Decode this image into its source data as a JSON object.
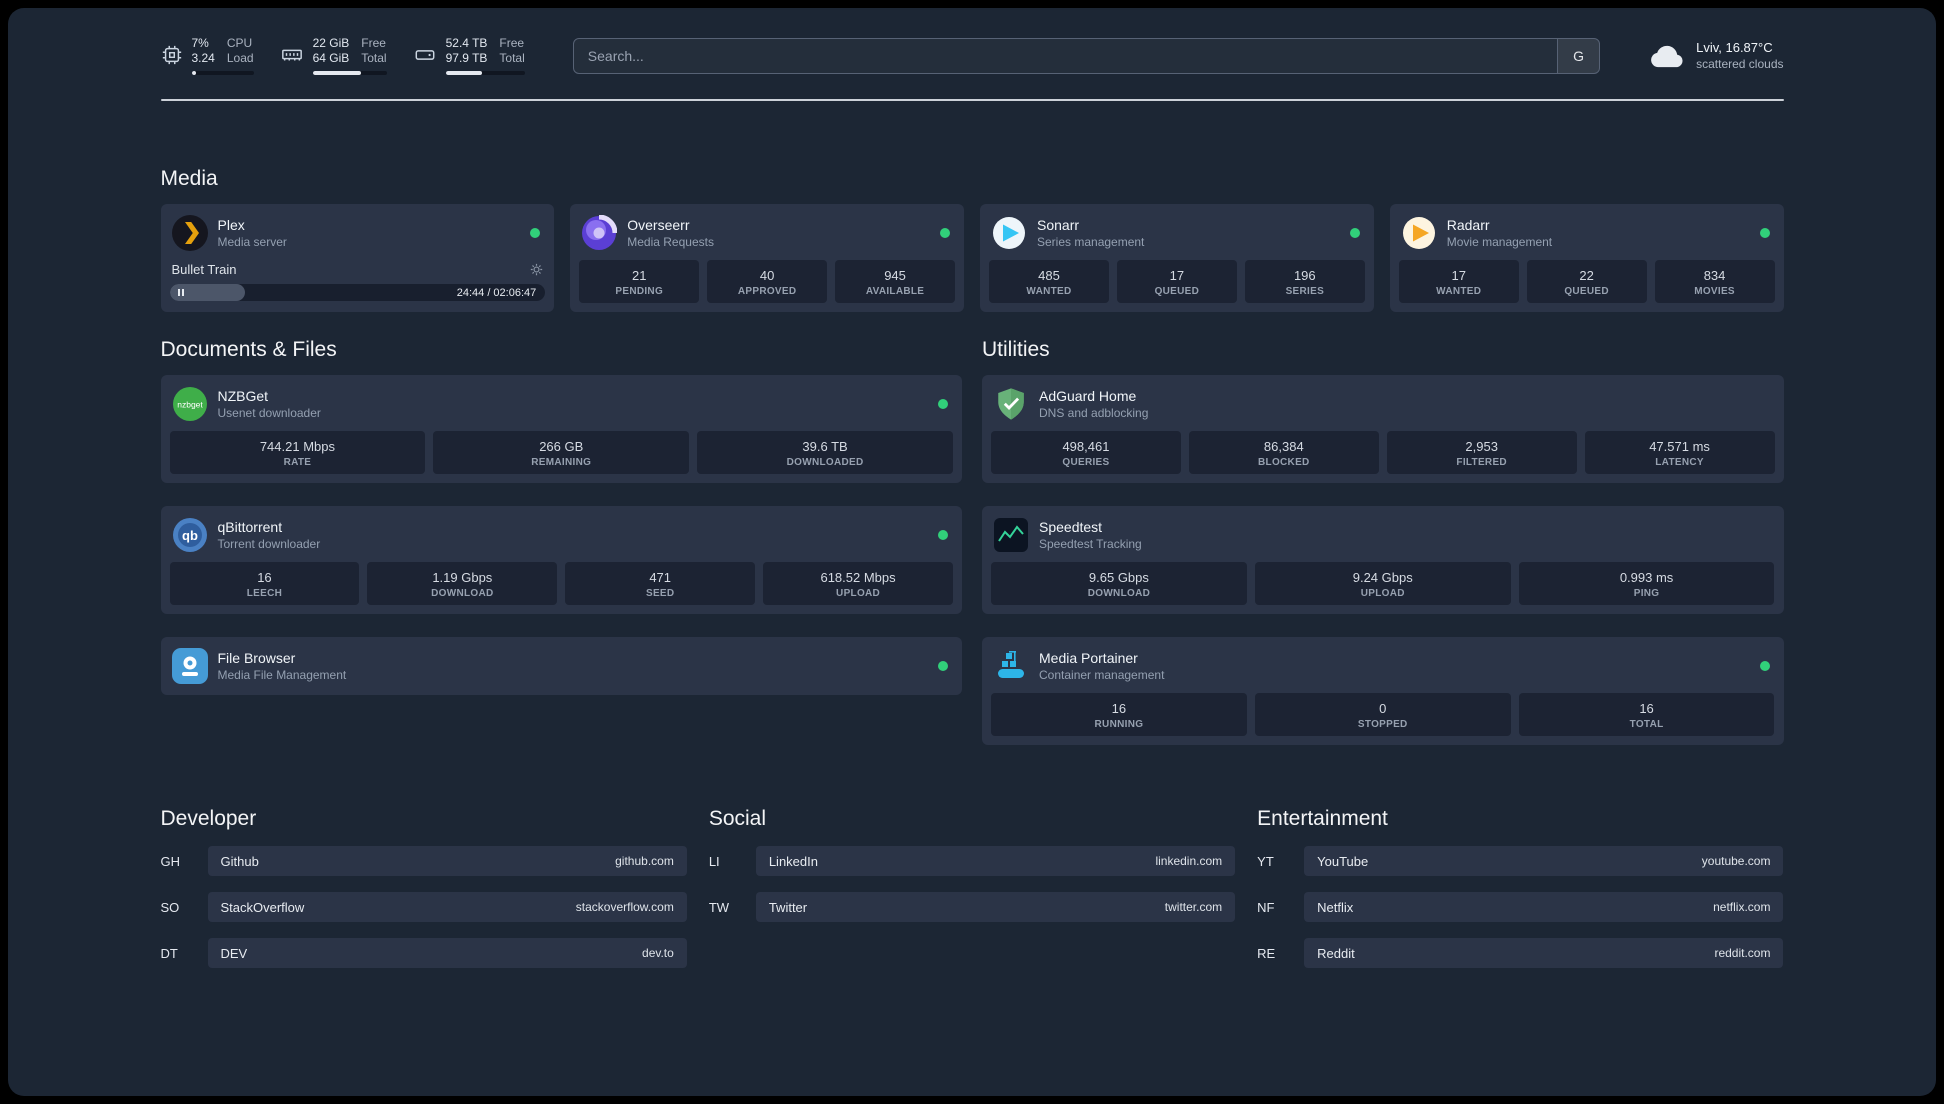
{
  "topbar": {
    "cpu": {
      "line1_value": "7%",
      "line2_value": "3.24",
      "line1_label": "CPU",
      "line2_label": "Load",
      "percent": 7
    },
    "memory": {
      "line1_value": "22 GiB",
      "line2_value": "64 GiB",
      "line1_label": "Free",
      "line2_label": "Total",
      "percent": 66
    },
    "disk": {
      "line1_value": "52.4 TB",
      "line2_value": "97.9 TB",
      "line1_label": "Free",
      "line2_label": "Total",
      "percent": 46
    },
    "search": {
      "placeholder": "Search...",
      "provider_label": "G"
    },
    "weather": {
      "location": "Lviv, 16.87°C",
      "condition": "scattered clouds"
    }
  },
  "sections": {
    "media": {
      "title": "Media",
      "plex": {
        "name": "Plex",
        "subtitle": "Media server",
        "now_playing": "Bullet Train",
        "time": "24:44 / 02:06:47",
        "progress_percent": 20
      },
      "overseerr": {
        "name": "Overseerr",
        "subtitle": "Media Requests",
        "stats": [
          {
            "value": "21",
            "label": "PENDING"
          },
          {
            "value": "40",
            "label": "APPROVED"
          },
          {
            "value": "945",
            "label": "AVAILABLE"
          }
        ]
      },
      "sonarr": {
        "name": "Sonarr",
        "subtitle": "Series management",
        "stats": [
          {
            "value": "485",
            "label": "WANTED"
          },
          {
            "value": "17",
            "label": "QUEUED"
          },
          {
            "value": "196",
            "label": "SERIES"
          }
        ]
      },
      "radarr": {
        "name": "Radarr",
        "subtitle": "Movie management",
        "stats": [
          {
            "value": "17",
            "label": "WANTED"
          },
          {
            "value": "22",
            "label": "QUEUED"
          },
          {
            "value": "834",
            "label": "MOVIES"
          }
        ]
      }
    },
    "documents": {
      "title": "Documents & Files",
      "nzbget": {
        "name": "NZBGet",
        "subtitle": "Usenet downloader",
        "stats": [
          {
            "value": "744.21 Mbps",
            "label": "RATE"
          },
          {
            "value": "266 GB",
            "label": "REMAINING"
          },
          {
            "value": "39.6 TB",
            "label": "DOWNLOADED"
          }
        ]
      },
      "qbittorrent": {
        "name": "qBittorrent",
        "subtitle": "Torrent downloader",
        "stats": [
          {
            "value": "16",
            "label": "LEECH"
          },
          {
            "value": "1.19 Gbps",
            "label": "DOWNLOAD"
          },
          {
            "value": "471",
            "label": "SEED"
          },
          {
            "value": "618.52 Mbps",
            "label": "UPLOAD"
          }
        ]
      },
      "filebrowser": {
        "name": "File Browser",
        "subtitle": "Media File Management"
      }
    },
    "utilities": {
      "title": "Utilities",
      "adguard": {
        "name": "AdGuard Home",
        "subtitle": "DNS and adblocking",
        "stats": [
          {
            "value": "498,461",
            "label": "QUERIES"
          },
          {
            "value": "86,384",
            "label": "BLOCKED"
          },
          {
            "value": "2,953",
            "label": "FILTERED"
          },
          {
            "value": "47.571 ms",
            "label": "LATENCY"
          }
        ]
      },
      "speedtest": {
        "name": "Speedtest",
        "subtitle": "Speedtest Tracking",
        "stats": [
          {
            "value": "9.65 Gbps",
            "label": "DOWNLOAD"
          },
          {
            "value": "9.24 Gbps",
            "label": "UPLOAD"
          },
          {
            "value": "0.993 ms",
            "label": "PING"
          }
        ]
      },
      "portainer": {
        "name": "Media Portainer",
        "subtitle": "Container management",
        "stats": [
          {
            "value": "16",
            "label": "RUNNING"
          },
          {
            "value": "0",
            "label": "STOPPED"
          },
          {
            "value": "16",
            "label": "TOTAL"
          }
        ]
      }
    },
    "bookmarks": {
      "developer": {
        "title": "Developer",
        "items": [
          {
            "abbr": "GH",
            "name": "Github",
            "url": "github.com"
          },
          {
            "abbr": "SO",
            "name": "StackOverflow",
            "url": "stackoverflow.com"
          },
          {
            "abbr": "DT",
            "name": "DEV",
            "url": "dev.to"
          }
        ]
      },
      "social": {
        "title": "Social",
        "items": [
          {
            "abbr": "LI",
            "name": "LinkedIn",
            "url": "linkedin.com"
          },
          {
            "abbr": "TW",
            "name": "Twitter",
            "url": "twitter.com"
          }
        ]
      },
      "entertainment": {
        "title": "Entertainment",
        "items": [
          {
            "abbr": "YT",
            "name": "YouTube",
            "url": "youtube.com"
          },
          {
            "abbr": "NF",
            "name": "Netflix",
            "url": "netflix.com"
          },
          {
            "abbr": "RE",
            "name": "Reddit",
            "url": "reddit.com"
          }
        ]
      }
    }
  },
  "colors": {
    "status_online": "#31d07a",
    "plex_accent": "#e5a00d"
  }
}
